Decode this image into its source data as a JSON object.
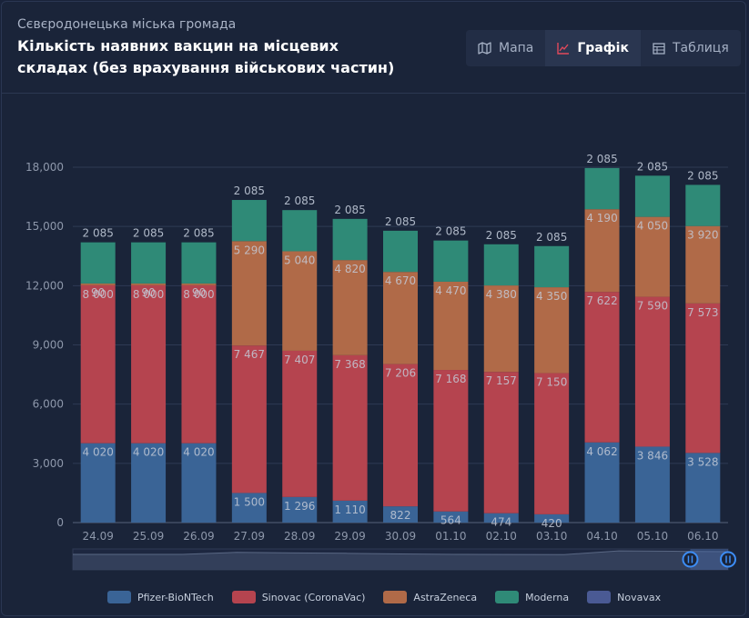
{
  "header": {
    "subtitle": "Сєвєродонецька міська громада",
    "title": "Кількість наявних вакцин на місцевих складах (без врахування військових частин)"
  },
  "tabs": [
    {
      "label": "Мапа",
      "icon": "map-icon",
      "active": false
    },
    {
      "label": "Графік",
      "icon": "line-chart-icon",
      "active": true
    },
    {
      "label": "Таблиця",
      "icon": "table-icon",
      "active": false
    }
  ],
  "colors": {
    "background": "#1a2439",
    "accent": "#e2495b",
    "pfizer": "#3a6496",
    "sinovac": "#b5444f",
    "astrazeneca": "#b06a48",
    "moderna": "#2f8a77",
    "novavax": "#4a5a94"
  },
  "chart_data": {
    "type": "bar",
    "stacked": true,
    "categories": [
      "24.09",
      "25.09",
      "26.09",
      "27.09",
      "28.09",
      "29.09",
      "30.09",
      "01.10",
      "02.10",
      "03.10",
      "04.10",
      "05.10",
      "06.10"
    ],
    "series": [
      {
        "name": "Pfizer-BioNTech",
        "color": "#3a6496",
        "values": [
          4020,
          4020,
          4020,
          1500,
          1296,
          1110,
          822,
          564,
          474,
          420,
          4062,
          3846,
          3528
        ]
      },
      {
        "name": "Sinovac (CoronaVac)",
        "color": "#b5444f",
        "values": [
          8000,
          8000,
          8000,
          7467,
          7407,
          7368,
          7206,
          7168,
          7157,
          7150,
          7622,
          7590,
          7573
        ]
      },
      {
        "name": "AstraZeneca",
        "color": "#b06a48",
        "values": [
          90,
          90,
          90,
          5290,
          5040,
          4820,
          4670,
          4470,
          4380,
          4350,
          4190,
          4050,
          3920
        ]
      },
      {
        "name": "Moderna",
        "color": "#2f8a77",
        "values": [
          2085,
          2085,
          2085,
          2085,
          2085,
          2085,
          2085,
          2085,
          2085,
          2085,
          2085,
          2085,
          2085
        ]
      },
      {
        "name": "Novavax",
        "color": "#4a5a94",
        "values": [
          0,
          0,
          0,
          0,
          0,
          0,
          0,
          0,
          0,
          0,
          0,
          0,
          0
        ]
      }
    ],
    "data_labels": [
      [
        "4 020",
        "8 000",
        "90",
        "2 085"
      ],
      [
        "4 020",
        "8 000",
        "90",
        "2 085"
      ],
      [
        "4 020",
        "8 000",
        "90",
        "2 085"
      ],
      [
        "1 500",
        "7 467",
        "5 290",
        "2 085"
      ],
      [
        "1 296",
        "7 407",
        "5 040",
        "2 085"
      ],
      [
        "1 110",
        "7 368",
        "4 820",
        "2 085"
      ],
      [
        "822",
        "7 206",
        "4 670",
        "2 085"
      ],
      [
        "564",
        "7 168",
        "4 470",
        "2 085"
      ],
      [
        "474",
        "7 157",
        "4 380",
        "2 085"
      ],
      [
        "420",
        "7 150",
        "4 350",
        "2 085"
      ],
      [
        "4 062",
        "7 622",
        "4 190",
        "2 085"
      ],
      [
        "3 846",
        "7 590",
        "4 050",
        "2 085"
      ],
      [
        "3 528",
        "7 573",
        "3 920",
        "2 085"
      ]
    ],
    "yticks": [
      "0",
      "3,000",
      "6,000",
      "9,000",
      "12,000",
      "15,000",
      "18,000"
    ],
    "ylim": [
      0,
      18000
    ],
    "grid": true,
    "legend_position": "bottom",
    "zoom_slider": true
  }
}
